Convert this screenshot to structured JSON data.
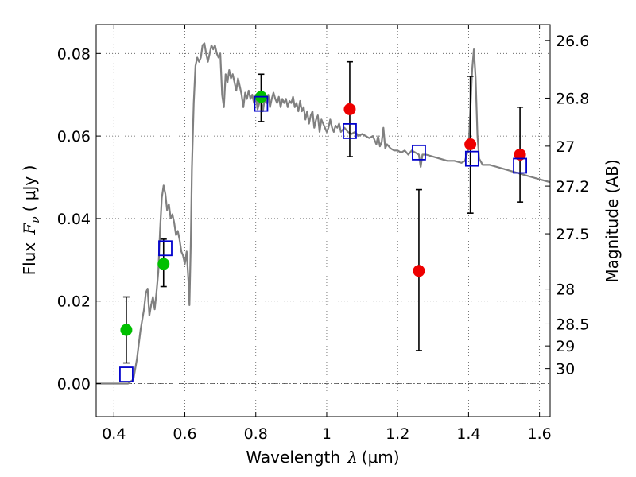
{
  "chart_data": {
    "type": "scatter",
    "xlabel": "Wavelength",
    "xlabel_symbol": "λ",
    "xlabel_unit": "(μm)",
    "ylabel": "Flux",
    "ylabel_symbol": "F",
    "ylabel_sub": "ν",
    "ylabel_unit": "( μJy )",
    "y2label": "Magnitude (AB)",
    "xlim": [
      0.35,
      1.63
    ],
    "ylim": [
      -0.008,
      0.087
    ],
    "grid": true,
    "x_ticks": [
      0.4,
      0.6,
      0.8,
      1.0,
      1.2,
      1.4,
      1.6
    ],
    "x_tick_labels": [
      "0.4",
      "0.6",
      "0.8",
      "1",
      "1.2",
      "1.4",
      "1.6"
    ],
    "y_ticks": [
      0.0,
      0.02,
      0.04,
      0.06,
      0.08
    ],
    "y_tick_labels": [
      "0.00",
      "0.02",
      "0.04",
      "0.06",
      "0.08"
    ],
    "y2_ticks": [
      {
        "mag": 26.6,
        "label": "26.6"
      },
      {
        "mag": 26.8,
        "label": "26.8"
      },
      {
        "mag": 27.0,
        "label": "27"
      },
      {
        "mag": 27.2,
        "label": "27.2"
      },
      {
        "mag": 27.5,
        "label": "27.5"
      },
      {
        "mag": 28.0,
        "label": "28"
      },
      {
        "mag": 28.5,
        "label": "28.5"
      },
      {
        "mag": 29.0,
        "label": "29"
      },
      {
        "mag": 30.0,
        "label": "30"
      }
    ],
    "colors": {
      "model": "#808080",
      "green": "#00c000",
      "red": "#ee0000",
      "blue": "#0000cc",
      "errorbar": "#000000",
      "grid": "#555555"
    },
    "series": [
      {
        "name": "model spectrum",
        "kind": "line",
        "points": [
          [
            0.35,
            0.0
          ],
          [
            0.44,
            0.0
          ],
          [
            0.455,
            0.001
          ],
          [
            0.465,
            0.006
          ],
          [
            0.475,
            0.013
          ],
          [
            0.485,
            0.018
          ],
          [
            0.49,
            0.022
          ],
          [
            0.495,
            0.023
          ],
          [
            0.5,
            0.0165
          ],
          [
            0.505,
            0.019
          ],
          [
            0.51,
            0.021
          ],
          [
            0.515,
            0.018
          ],
          [
            0.52,
            0.022
          ],
          [
            0.525,
            0.027
          ],
          [
            0.53,
            0.037
          ],
          [
            0.535,
            0.045
          ],
          [
            0.54,
            0.048
          ],
          [
            0.545,
            0.046
          ],
          [
            0.55,
            0.042
          ],
          [
            0.555,
            0.0435
          ],
          [
            0.56,
            0.04
          ],
          [
            0.565,
            0.041
          ],
          [
            0.57,
            0.039
          ],
          [
            0.575,
            0.036
          ],
          [
            0.58,
            0.037
          ],
          [
            0.585,
            0.035
          ],
          [
            0.59,
            0.032
          ],
          [
            0.595,
            0.031
          ],
          [
            0.6,
            0.029
          ],
          [
            0.605,
            0.032
          ],
          [
            0.61,
            0.025
          ],
          [
            0.613,
            0.019
          ],
          [
            0.617,
            0.035
          ],
          [
            0.62,
            0.052
          ],
          [
            0.625,
            0.068
          ],
          [
            0.63,
            0.077
          ],
          [
            0.635,
            0.079
          ],
          [
            0.64,
            0.078
          ],
          [
            0.645,
            0.079
          ],
          [
            0.65,
            0.082
          ],
          [
            0.655,
            0.0825
          ],
          [
            0.66,
            0.08
          ],
          [
            0.665,
            0.078
          ],
          [
            0.67,
            0.08
          ],
          [
            0.675,
            0.082
          ],
          [
            0.68,
            0.081
          ],
          [
            0.685,
            0.082
          ],
          [
            0.69,
            0.08
          ],
          [
            0.695,
            0.079
          ],
          [
            0.7,
            0.08
          ],
          [
            0.705,
            0.07
          ],
          [
            0.71,
            0.067
          ],
          [
            0.715,
            0.075
          ],
          [
            0.72,
            0.073
          ],
          [
            0.725,
            0.076
          ],
          [
            0.73,
            0.074
          ],
          [
            0.735,
            0.075
          ],
          [
            0.74,
            0.073
          ],
          [
            0.745,
            0.071
          ],
          [
            0.75,
            0.074
          ],
          [
            0.755,
            0.072
          ],
          [
            0.76,
            0.07
          ],
          [
            0.765,
            0.067
          ],
          [
            0.77,
            0.0705
          ],
          [
            0.775,
            0.069
          ],
          [
            0.78,
            0.071
          ],
          [
            0.785,
            0.069
          ],
          [
            0.79,
            0.07
          ],
          [
            0.795,
            0.068
          ],
          [
            0.8,
            0.07
          ],
          [
            0.805,
            0.0665
          ],
          [
            0.81,
            0.068
          ],
          [
            0.815,
            0.069
          ],
          [
            0.82,
            0.066
          ],
          [
            0.825,
            0.069
          ],
          [
            0.83,
            0.068
          ],
          [
            0.835,
            0.07
          ],
          [
            0.84,
            0.067
          ],
          [
            0.845,
            0.069
          ],
          [
            0.85,
            0.0705
          ],
          [
            0.855,
            0.069
          ],
          [
            0.86,
            0.068
          ],
          [
            0.865,
            0.0695
          ],
          [
            0.87,
            0.067
          ],
          [
            0.875,
            0.069
          ],
          [
            0.88,
            0.068
          ],
          [
            0.885,
            0.069
          ],
          [
            0.89,
            0.067
          ],
          [
            0.895,
            0.0685
          ],
          [
            0.9,
            0.068
          ],
          [
            0.905,
            0.0695
          ],
          [
            0.91,
            0.067
          ],
          [
            0.915,
            0.068
          ],
          [
            0.92,
            0.066
          ],
          [
            0.925,
            0.0685
          ],
          [
            0.93,
            0.066
          ],
          [
            0.935,
            0.067
          ],
          [
            0.94,
            0.064
          ],
          [
            0.945,
            0.066
          ],
          [
            0.95,
            0.063
          ],
          [
            0.955,
            0.065
          ],
          [
            0.96,
            0.066
          ],
          [
            0.965,
            0.062
          ],
          [
            0.97,
            0.064
          ],
          [
            0.975,
            0.065
          ],
          [
            0.98,
            0.061
          ],
          [
            0.985,
            0.064
          ],
          [
            0.99,
            0.063
          ],
          [
            0.995,
            0.062
          ],
          [
            1.0,
            0.061
          ],
          [
            1.005,
            0.062
          ],
          [
            1.01,
            0.064
          ],
          [
            1.015,
            0.062
          ],
          [
            1.02,
            0.061
          ],
          [
            1.025,
            0.0625
          ],
          [
            1.03,
            0.062
          ],
          [
            1.035,
            0.063
          ],
          [
            1.04,
            0.061
          ],
          [
            1.045,
            0.0615
          ],
          [
            1.05,
            0.062
          ],
          [
            1.06,
            0.061
          ],
          [
            1.07,
            0.0605
          ],
          [
            1.08,
            0.061
          ],
          [
            1.09,
            0.06
          ],
          [
            1.1,
            0.0605
          ],
          [
            1.11,
            0.06
          ],
          [
            1.12,
            0.0595
          ],
          [
            1.13,
            0.06
          ],
          [
            1.14,
            0.058
          ],
          [
            1.145,
            0.06
          ],
          [
            1.15,
            0.0575
          ],
          [
            1.155,
            0.0585
          ],
          [
            1.16,
            0.062
          ],
          [
            1.165,
            0.057
          ],
          [
            1.17,
            0.058
          ],
          [
            1.18,
            0.057
          ],
          [
            1.19,
            0.0565
          ],
          [
            1.2,
            0.0565
          ],
          [
            1.21,
            0.056
          ],
          [
            1.22,
            0.0565
          ],
          [
            1.23,
            0.0555
          ],
          [
            1.24,
            0.0565
          ],
          [
            1.25,
            0.056
          ],
          [
            1.26,
            0.0555
          ],
          [
            1.265,
            0.0525
          ],
          [
            1.27,
            0.0555
          ],
          [
            1.28,
            0.0555
          ],
          [
            1.3,
            0.055
          ],
          [
            1.32,
            0.0545
          ],
          [
            1.34,
            0.054
          ],
          [
            1.36,
            0.054
          ],
          [
            1.38,
            0.0535
          ],
          [
            1.39,
            0.054
          ],
          [
            1.4,
            0.057
          ],
          [
            1.405,
            0.066
          ],
          [
            1.41,
            0.076
          ],
          [
            1.415,
            0.081
          ],
          [
            1.42,
            0.074
          ],
          [
            1.425,
            0.06
          ],
          [
            1.43,
            0.0545
          ],
          [
            1.44,
            0.053
          ],
          [
            1.46,
            0.053
          ],
          [
            1.48,
            0.0525
          ],
          [
            1.5,
            0.052
          ],
          [
            1.52,
            0.0515
          ],
          [
            1.54,
            0.051
          ],
          [
            1.56,
            0.0505
          ],
          [
            1.58,
            0.05
          ],
          [
            1.6,
            0.0495
          ],
          [
            1.63,
            0.0488
          ]
        ]
      },
      {
        "name": "green detections",
        "kind": "points",
        "points": [
          {
            "x": 0.435,
            "y": 0.013,
            "yerr_low": 0.005,
            "yerr_high": 0.021
          },
          {
            "x": 0.54,
            "y": 0.029,
            "yerr_low": 0.0235,
            "yerr_high": 0.035
          },
          {
            "x": 0.815,
            "y": 0.0695,
            "yerr_low": 0.0635,
            "yerr_high": 0.075
          }
        ]
      },
      {
        "name": "red detections",
        "kind": "points",
        "points": [
          {
            "x": 1.065,
            "y": 0.0665,
            "yerr_low": 0.055,
            "yerr_high": 0.078
          },
          {
            "x": 1.26,
            "y": 0.0273,
            "yerr_low": 0.008,
            "yerr_high": 0.047
          },
          {
            "x": 1.405,
            "y": 0.058,
            "yerr_low": 0.0413,
            "yerr_high": 0.0745
          },
          {
            "x": 1.545,
            "y": 0.0555,
            "yerr_low": 0.044,
            "yerr_high": 0.067
          }
        ]
      },
      {
        "name": "model synthetic photometry",
        "kind": "squares",
        "points": [
          {
            "x": 0.435,
            "y": 0.0022
          },
          {
            "x": 0.545,
            "y": 0.0328
          },
          {
            "x": 0.815,
            "y": 0.0678
          },
          {
            "x": 1.065,
            "y": 0.0612
          },
          {
            "x": 1.26,
            "y": 0.056
          },
          {
            "x": 1.41,
            "y": 0.0545
          },
          {
            "x": 1.545,
            "y": 0.0528
          }
        ]
      }
    ]
  }
}
